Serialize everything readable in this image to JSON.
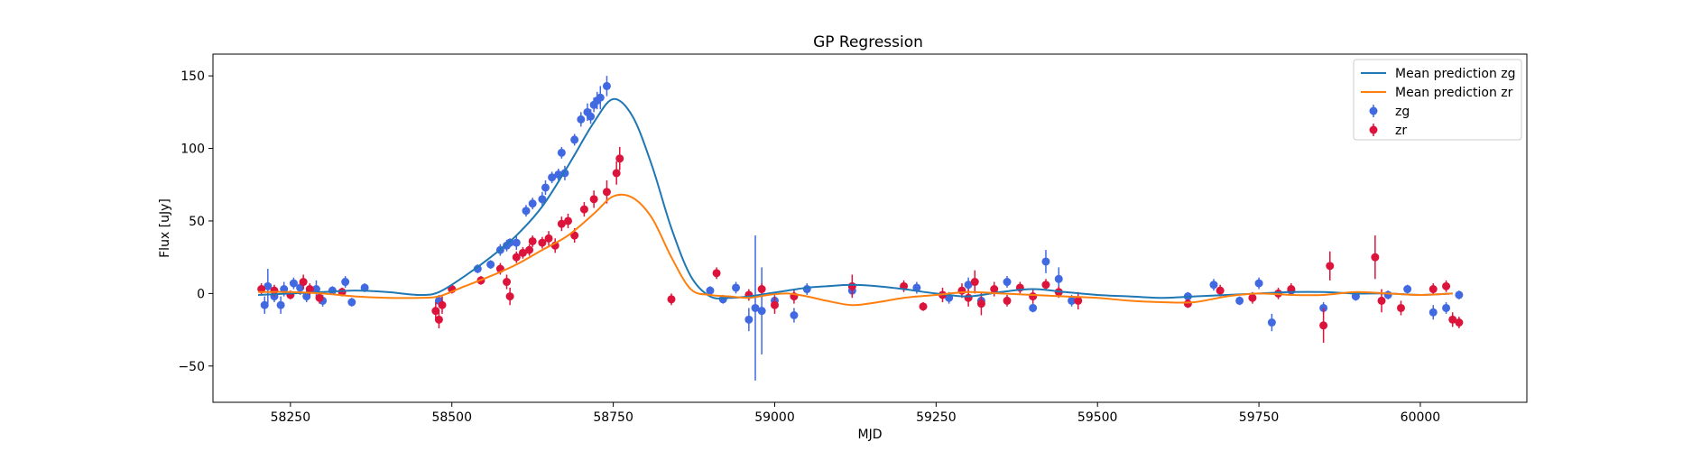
{
  "chart_data": {
    "type": "scatter",
    "title": "GP Regression",
    "xlabel": "MJD",
    "ylabel": "Flux [uJy]",
    "xlim": [
      58130,
      60165
    ],
    "ylim": [
      -75,
      165
    ],
    "xticks": [
      58250,
      58500,
      58750,
      59000,
      59250,
      59500,
      59750,
      60000
    ],
    "yticks": [
      -50,
      0,
      50,
      100,
      150
    ],
    "grid": false,
    "legend_position": "top-right",
    "series": [
      {
        "name": "Mean prediction zg",
        "kind": "line",
        "color": "#1f77b4",
        "x": [
          58200,
          58250,
          58300,
          58350,
          58400,
          58450,
          58480,
          58520,
          58560,
          58600,
          58640,
          58680,
          58720,
          58750,
          58780,
          58810,
          58840,
          58870,
          58900,
          58930,
          58960,
          58990,
          59020,
          59050,
          59080,
          59120,
          59160,
          59200,
          59250,
          59300,
          59350,
          59400,
          59450,
          59500,
          59550,
          59600,
          59650,
          59700,
          59750,
          59800,
          59850,
          59900,
          59950,
          60000,
          60050
        ],
        "values": [
          -1,
          0,
          1,
          2,
          1,
          -1,
          1,
          12,
          25,
          40,
          60,
          88,
          118,
          134,
          122,
          88,
          45,
          12,
          -2,
          -3,
          -2,
          0,
          2,
          4,
          5,
          6,
          5,
          3,
          0,
          -2,
          1,
          3,
          1,
          -1,
          -2,
          -3,
          -2,
          -1,
          0,
          1,
          1,
          0,
          0,
          -1,
          0
        ]
      },
      {
        "name": "Mean prediction zr",
        "kind": "line",
        "color": "#ff7f0e",
        "x": [
          58200,
          58250,
          58300,
          58350,
          58400,
          58450,
          58480,
          58520,
          58560,
          58600,
          58640,
          58680,
          58720,
          58750,
          58780,
          58810,
          58840,
          58870,
          58900,
          58930,
          58960,
          58990,
          59020,
          59050,
          59080,
          59120,
          59160,
          59200,
          59250,
          59300,
          59350,
          59400,
          59450,
          59500,
          59550,
          59600,
          59650,
          59700,
          59750,
          59800,
          59850,
          59900,
          59950,
          60000,
          60050
        ],
        "values": [
          1,
          1,
          0,
          -2,
          -3,
          -3,
          -2,
          5,
          12,
          20,
          30,
          40,
          55,
          67,
          66,
          52,
          25,
          3,
          -1,
          -2,
          -3,
          -1,
          0,
          -2,
          -5,
          -8,
          -6,
          -3,
          -1,
          1,
          0,
          -1,
          -2,
          -3,
          -5,
          -6,
          -6,
          -2,
          0,
          -1,
          -1,
          1,
          0,
          -1,
          0
        ]
      },
      {
        "name": "zg",
        "kind": "errorbar",
        "color": "#4169e1",
        "x": [
          58210,
          58215,
          58225,
          58235,
          58240,
          58255,
          58265,
          58275,
          58290,
          58300,
          58315,
          58335,
          58345,
          58365,
          58480,
          58540,
          58560,
          58575,
          58585,
          58590,
          58600,
          58615,
          58625,
          58640,
          58645,
          58655,
          58665,
          58670,
          58675,
          58690,
          58700,
          58710,
          58715,
          58720,
          58725,
          58730,
          58740,
          58900,
          58920,
          58940,
          58960,
          58970,
          58980,
          59000,
          59030,
          59050,
          59120,
          59220,
          59270,
          59300,
          59320,
          59360,
          59400,
          59420,
          59440,
          59460,
          59640,
          59680,
          59720,
          59750,
          59770,
          59800,
          59850,
          59900,
          59950,
          59980,
          60020,
          60040,
          60060
        ],
        "values": [
          -8,
          5,
          -2,
          -8,
          3,
          7,
          4,
          -2,
          3,
          -5,
          2,
          8,
          -6,
          4,
          -5,
          17,
          20,
          30,
          33,
          35,
          35,
          57,
          62,
          65,
          73,
          80,
          82,
          97,
          83,
          106,
          120,
          125,
          122,
          130,
          133,
          135,
          143,
          2,
          -4,
          4,
          -18,
          -10,
          -12,
          -5,
          -15,
          3,
          2,
          4,
          -3,
          6,
          -5,
          8,
          -10,
          22,
          10,
          -5,
          -2,
          6,
          -5,
          7,
          -20,
          2,
          -10,
          -2,
          -1,
          3,
          -13,
          -10,
          -1
        ],
        "errors": [
          6,
          12,
          4,
          6,
          5,
          4,
          5,
          4,
          6,
          4,
          3,
          4,
          3,
          3,
          4,
          3,
          3,
          4,
          4,
          3,
          5,
          4,
          4,
          5,
          5,
          4,
          4,
          4,
          5,
          4,
          5,
          6,
          5,
          5,
          6,
          8,
          7,
          3,
          3,
          4,
          8,
          50,
          30,
          6,
          5,
          4,
          4,
          4,
          4,
          5,
          5,
          4,
          3,
          8,
          8,
          4,
          3,
          4,
          3,
          4,
          6,
          3,
          4,
          3,
          3,
          3,
          5,
          4,
          3
        ],
        "errorbar_labels": [
          "zg"
        ]
      },
      {
        "name": "zr",
        "kind": "errorbar",
        "color": "#dc143c",
        "x": [
          58205,
          58225,
          58250,
          58270,
          58280,
          58295,
          58330,
          58475,
          58480,
          58485,
          58500,
          58545,
          58575,
          58585,
          58590,
          58600,
          58610,
          58620,
          58625,
          58640,
          58650,
          58660,
          58670,
          58680,
          58690,
          58705,
          58720,
          58740,
          58755,
          58760,
          58840,
          58910,
          58960,
          58980,
          59000,
          59030,
          59120,
          59200,
          59230,
          59260,
          59290,
          59300,
          59310,
          59320,
          59340,
          59360,
          59380,
          59400,
          59420,
          59440,
          59470,
          59640,
          59690,
          59740,
          59780,
          59800,
          59850,
          59860,
          59930,
          59940,
          59970,
          60020,
          60040,
          60050,
          60060
        ],
        "values": [
          3,
          2,
          -1,
          8,
          3,
          -3,
          1,
          -12,
          -18,
          -8,
          3,
          9,
          17,
          8,
          -2,
          25,
          28,
          30,
          36,
          35,
          38,
          33,
          48,
          50,
          40,
          58,
          65,
          70,
          83,
          93,
          -4,
          14,
          -1,
          3,
          -8,
          -2,
          5,
          5,
          -9,
          -1,
          2,
          -3,
          8,
          -7,
          3,
          -5,
          4,
          -2,
          6,
          1,
          -5,
          -7,
          2,
          -3,
          0,
          3,
          -22,
          19,
          25,
          -5,
          -10,
          3,
          5,
          -18,
          -20
        ],
        "errors": [
          4,
          4,
          3,
          5,
          4,
          4,
          3,
          6,
          6,
          6,
          3,
          3,
          4,
          5,
          6,
          4,
          4,
          4,
          4,
          4,
          5,
          5,
          5,
          5,
          5,
          5,
          6,
          8,
          8,
          8,
          4,
          4,
          4,
          4,
          6,
          5,
          8,
          4,
          3,
          5,
          5,
          6,
          8,
          8,
          5,
          4,
          4,
          5,
          4,
          4,
          6,
          3,
          4,
          4,
          4,
          4,
          12,
          10,
          15,
          8,
          5,
          4,
          4,
          5,
          4
        ]
      }
    ],
    "legend": [
      {
        "label": "Mean prediction zg",
        "kind": "line",
        "color": "#1f77b4"
      },
      {
        "label": "Mean prediction zr",
        "kind": "line",
        "color": "#ff7f0e"
      },
      {
        "label": "zg",
        "kind": "marker",
        "color": "#4169e1"
      },
      {
        "label": "zr",
        "kind": "marker",
        "color": "#dc143c"
      }
    ]
  }
}
